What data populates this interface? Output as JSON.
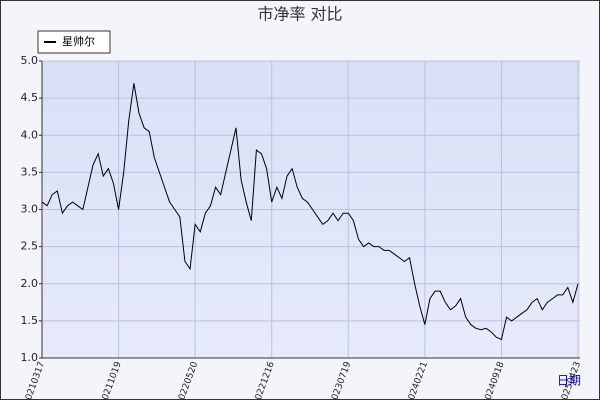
{
  "chart_data": {
    "type": "line",
    "title": "市净率  对比",
    "x_label": "日期",
    "categories": [
      "20210317",
      null,
      null,
      null,
      null,
      null,
      null,
      null,
      null,
      null,
      null,
      null,
      null,
      null,
      null,
      "20211019",
      null,
      null,
      null,
      null,
      null,
      null,
      null,
      null,
      null,
      null,
      null,
      null,
      null,
      null,
      "20220520",
      null,
      null,
      null,
      null,
      null,
      null,
      null,
      null,
      null,
      null,
      null,
      null,
      null,
      null,
      "20221216",
      null,
      null,
      null,
      null,
      null,
      null,
      null,
      null,
      null,
      null,
      null,
      null,
      null,
      null,
      "20230719",
      null,
      null,
      null,
      null,
      null,
      null,
      null,
      null,
      null,
      null,
      null,
      null,
      null,
      null,
      "20240221",
      null,
      null,
      null,
      null,
      null,
      null,
      null,
      null,
      null,
      null,
      null,
      null,
      null,
      null,
      "20240918",
      null,
      null,
      null,
      null,
      null,
      null,
      null,
      null,
      null,
      null,
      null,
      null,
      null,
      null,
      "20250423"
    ],
    "series": [
      {
        "name": "星帅尔",
        "color": "#000000",
        "values": [
          3.1,
          3.05,
          3.2,
          3.25,
          2.95,
          3.05,
          3.1,
          3.05,
          3.0,
          3.3,
          3.6,
          3.75,
          3.45,
          3.55,
          3.35,
          3.0,
          3.5,
          4.2,
          4.7,
          4.3,
          4.1,
          4.05,
          3.7,
          3.5,
          3.3,
          3.1,
          3.0,
          2.9,
          2.3,
          2.2,
          2.8,
          2.7,
          2.95,
          3.05,
          3.3,
          3.2,
          3.5,
          3.8,
          4.1,
          3.4,
          3.1,
          2.85,
          3.8,
          3.75,
          3.55,
          3.1,
          3.3,
          3.15,
          3.45,
          3.55,
          3.3,
          3.15,
          3.1,
          3.0,
          2.9,
          2.8,
          2.85,
          2.95,
          2.85,
          2.95,
          2.95,
          2.85,
          2.6,
          2.5,
          2.55,
          2.5,
          2.5,
          2.45,
          2.45,
          2.4,
          2.35,
          2.3,
          2.35,
          2.0,
          1.7,
          1.45,
          1.8,
          1.9,
          1.9,
          1.75,
          1.65,
          1.7,
          1.8,
          1.55,
          1.45,
          1.4,
          1.38,
          1.4,
          1.35,
          1.28,
          1.25,
          1.55,
          1.5,
          1.55,
          1.6,
          1.65,
          1.75,
          1.8,
          1.65,
          1.75,
          1.8,
          1.85,
          1.85,
          1.95,
          1.75,
          2.0
        ]
      }
    ],
    "ylim": [
      1,
      5
    ],
    "yticks": [
      {
        "value": 1,
        "label": "1.0"
      },
      1.5,
      {
        "value": 2,
        "label": "2.0"
      },
      2.5,
      {
        "value": 3,
        "label": "3.0"
      },
      3.5,
      {
        "value": 4,
        "label": "4.0"
      },
      4.5,
      {
        "value": 5,
        "label": "5.0"
      }
    ],
    "grid": true,
    "legend": "top-left"
  }
}
